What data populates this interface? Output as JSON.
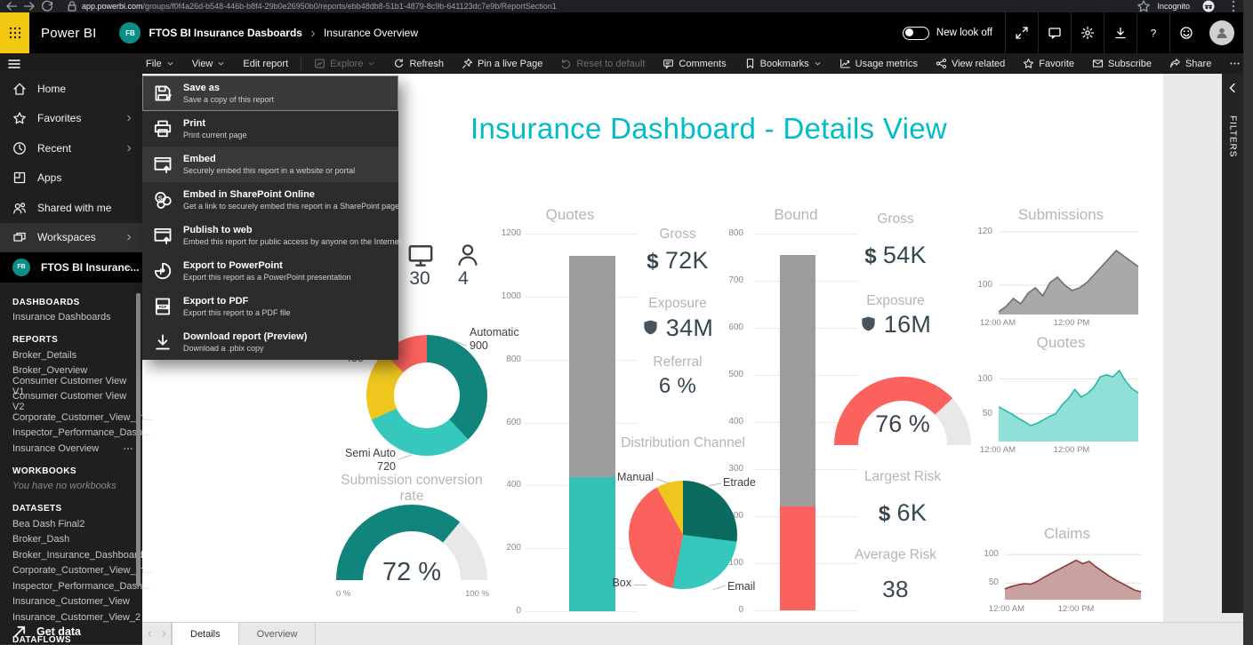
{
  "browser": {
    "url_host": "app.powerbi.com",
    "url_path": "/groups/f0f4a26d-b548-446b-b8f4-29b0e26950b0/reports/ebb48db8-51b1-4879-8c9b-641123dc7e9b/ReportSection1",
    "incognito_label": "Incognito"
  },
  "header": {
    "app_name": "Power BI",
    "workspace_badge": "FB",
    "breadcrumb_workspace": "FTOS BI Insurance Dasboards",
    "breadcrumb_report": "Insurance Overview",
    "new_look_label": "New look off",
    "right_icons": [
      "fullscreen-icon",
      "chat-icon",
      "gear-icon",
      "download-icon",
      "help-icon",
      "smiley-icon"
    ]
  },
  "menubar": {
    "left": [
      {
        "label": "File",
        "chevron": true,
        "name": "file"
      },
      {
        "label": "View",
        "chevron": true,
        "name": "view"
      },
      {
        "label": "Edit report",
        "name": "edit-report",
        "sep_after": true
      },
      {
        "label": "Explore",
        "icon": "explore-icon",
        "chevron": true,
        "disabled": true,
        "name": "explore"
      },
      {
        "label": "Refresh",
        "icon": "refresh-icon",
        "name": "refresh"
      },
      {
        "label": "Pin a live Page",
        "icon": "pin-icon",
        "name": "pin-live-page"
      }
    ],
    "right": [
      {
        "label": "Reset to default",
        "icon": "undo-icon",
        "disabled": true,
        "name": "reset-to-default"
      },
      {
        "label": "Comments",
        "icon": "comment-icon",
        "name": "comments"
      },
      {
        "label": "Bookmarks",
        "icon": "bookmark-icon",
        "chevron": true,
        "name": "bookmarks"
      },
      {
        "label": "Usage metrics",
        "icon": "metrics-icon",
        "name": "usage-metrics"
      },
      {
        "label": "View related",
        "icon": "related-icon",
        "name": "view-related"
      },
      {
        "label": "Favorite",
        "icon": "favorite-icon",
        "name": "favorite"
      },
      {
        "label": "Subscribe",
        "icon": "envelope-icon",
        "name": "subscribe"
      },
      {
        "label": "Share",
        "icon": "share-icon",
        "name": "share"
      },
      {
        "label": "",
        "icon": "more-icon",
        "name": "more-options"
      }
    ]
  },
  "file_menu": [
    {
      "title": "Save as",
      "desc": "Save a copy of this report",
      "icon": "save-icon",
      "state": "focused"
    },
    {
      "title": "Print",
      "desc": "Print current page",
      "icon": "print-icon"
    },
    {
      "title": "Embed",
      "desc": "Securely embed this report in a website or portal",
      "icon": "embed-icon",
      "state": "hover"
    },
    {
      "title": "Embed in SharePoint Online",
      "desc": "Get a link to securely embed this report in a SharePoint page",
      "icon": "sharepoint-icon"
    },
    {
      "title": "Publish to web",
      "desc": "Embed this report for public access by anyone on the Internet",
      "icon": "publish-web-icon"
    },
    {
      "title": "Export to PowerPoint",
      "desc": "Export this report as a PowerPoint presentation",
      "icon": "powerpoint-icon"
    },
    {
      "title": "Export to PDF",
      "desc": "Export this report to a PDF file",
      "icon": "pdf-icon"
    },
    {
      "title": "Download report (Preview)",
      "desc": "Download a .pbix copy",
      "icon": "download-icon"
    }
  ],
  "sidebar": {
    "nav": [
      {
        "label": "Home",
        "icon": "home-icon"
      },
      {
        "label": "Favorites",
        "icon": "star-icon",
        "chevron": "right"
      },
      {
        "label": "Recent",
        "icon": "clock-icon",
        "chevron": "right"
      },
      {
        "label": "Apps",
        "icon": "apps-icon"
      },
      {
        "label": "Shared with me",
        "icon": "people-icon"
      },
      {
        "label": "Workspaces",
        "icon": "workspaces-icon",
        "chevron": "right",
        "highlight": true
      },
      {
        "label": "FTOS BI Insuranc...",
        "badge": "FB",
        "chevron": "up",
        "active": true
      }
    ],
    "sections": [
      {
        "heading": "DASHBOARDS",
        "items": [
          {
            "label": "Insurance Dashboards"
          }
        ]
      },
      {
        "heading": "REPORTS",
        "items": [
          {
            "label": "Broker_Details"
          },
          {
            "label": "Broker_Overview"
          },
          {
            "label": "Consumer Customer View V1"
          },
          {
            "label": "Consumer Customer View V2"
          },
          {
            "label": "Corporate_Customer_View_In..."
          },
          {
            "label": "Inspector_Performance_Dash..."
          },
          {
            "label": "Insurance Overview",
            "more": true
          }
        ]
      },
      {
        "heading": "WORKBOOKS",
        "empty": "You have no workbooks",
        "items": []
      },
      {
        "heading": "DATASETS",
        "items": [
          {
            "label": "Bea Dash Final2"
          },
          {
            "label": "Broker_Dash"
          },
          {
            "label": "Broker_Insurance_Dashboard"
          },
          {
            "label": "Corporate_Customer_View_In..."
          },
          {
            "label": "Inspector_Performance_Dash..."
          },
          {
            "label": "Insurance_Customer_View"
          },
          {
            "label": "Insurance_Customer_View_2"
          }
        ]
      },
      {
        "heading": "DATAFLOWS",
        "items": []
      }
    ],
    "get_data_label": "Get data"
  },
  "report": {
    "title": "Insurance Dashboard - Details View",
    "accent_color": "#00BCC9",
    "filters_label": "FILTERS",
    "tabs": [
      {
        "label": "Details",
        "active": true
      },
      {
        "label": "Overview",
        "active": false
      }
    ]
  },
  "chart_data": {
    "counts": {
      "type": "kpi",
      "monitor_value": "30",
      "person_value": "4"
    },
    "quotes_column": {
      "type": "bar",
      "title": "Quotes",
      "ylim": [
        0,
        1200
      ],
      "yticks": [
        0,
        200,
        400,
        600,
        800,
        1000,
        1200
      ],
      "stack": [
        {
          "name": "segment-bottom",
          "value": 425,
          "color": "#35C1B6"
        },
        {
          "name": "segment-top",
          "value": 705,
          "color": "#9D9D9D"
        }
      ]
    },
    "bound_column": {
      "type": "bar",
      "title": "Bound",
      "ylim": [
        0,
        800
      ],
      "yticks": [
        0,
        100,
        200,
        300,
        400,
        500,
        600,
        700,
        800
      ],
      "stack": [
        {
          "name": "segment-bottom",
          "value": 220,
          "color": "#FB625D"
        },
        {
          "name": "segment-top",
          "value": 535,
          "color": "#9D9D9D"
        }
      ]
    },
    "submission_donut": {
      "type": "donut",
      "slices": [
        {
          "label": "Automatic",
          "value": 900,
          "color": "#11847B"
        },
        {
          "label": "Semi Auto",
          "value": 720,
          "color": "#36C7BD"
        },
        {
          "label": "450",
          "value": 450,
          "color": "#EEC61E"
        },
        {
          "label": "",
          "value": 300,
          "color": "#FB625D"
        }
      ],
      "callouts": {
        "automatic_label": "Automatic",
        "automatic_value": "900",
        "semi_label": "Semi Auto",
        "semi_value": "720",
        "partial_value": "450"
      }
    },
    "conversion_gauge": {
      "type": "gauge",
      "title": "Submission conversion rate",
      "value_pct": 72,
      "display": "72 %",
      "min_label": "0 %",
      "max_label": "100 %",
      "color": "#11847B",
      "track_color": "#E8E8E8"
    },
    "quotes_kpis": {
      "type": "kpi",
      "currency": "$",
      "gross_label": "Gross",
      "gross_value": "72K",
      "exposure_label": "Exposure",
      "exposure_value": "34M",
      "referral_label": "Referral",
      "referral_value": "6 %"
    },
    "distribution_pie": {
      "type": "pie",
      "title": "Distribution Channel",
      "slices": [
        {
          "label": "Etrade",
          "value": 27,
          "color": "#0C6B5F"
        },
        {
          "label": "Email",
          "value": 26,
          "color": "#36C7BD"
        },
        {
          "label": "Box",
          "value": 39,
          "color": "#FB625D"
        },
        {
          "label": "Manual",
          "value": 8,
          "color": "#EEC61E"
        }
      ]
    },
    "bound_kpis": {
      "type": "kpi",
      "currency": "$",
      "gross_label": "Gross",
      "gross_value": "54K",
      "exposure_label": "Exposure",
      "exposure_value": "16M"
    },
    "bound_gauge": {
      "type": "gauge",
      "value_pct": 76,
      "display": "76 %",
      "color": "#FB625D",
      "track_color": "#E8E8E8"
    },
    "risk_kpis": {
      "type": "kpi",
      "currency": "$",
      "largest_label": "Largest Risk",
      "largest_value": "6K",
      "average_label": "Average Risk",
      "average_value": "38"
    },
    "submissions_area": {
      "type": "area",
      "title": "Submissions",
      "line_color": "#6F6F6F",
      "fill_color": "#A9A9A9",
      "ylim": [
        89,
        121
      ],
      "yticks": [
        100,
        120
      ],
      "x_labels": [
        "12:00 AM",
        "12:00 PM"
      ],
      "values": [
        90,
        92,
        95,
        93,
        97,
        99,
        96,
        101,
        103,
        100,
        98,
        99,
        101,
        104,
        107,
        110,
        113,
        111,
        109,
        107
      ]
    },
    "quotes_area": {
      "type": "area",
      "title": "Quotes",
      "line_color": "#26B8AB",
      "fill_color": "#90E0D7",
      "ylim": [
        10,
        134
      ],
      "yticks": [
        50,
        100
      ],
      "x_labels": [
        "12:00 AM",
        "12:00 PM"
      ],
      "values": [
        60,
        55,
        50,
        44,
        39,
        33,
        36,
        41,
        46,
        50,
        63,
        72,
        85,
        74,
        79,
        88,
        103,
        106,
        103,
        112,
        97,
        86,
        80
      ]
    },
    "claims_area": {
      "type": "area",
      "title": "Claims",
      "line_color": "#8C3A37",
      "fill_color": "#C9A19F",
      "ylim": [
        21,
        122
      ],
      "yticks": [
        50,
        100
      ],
      "x_labels": [
        "12:00 AM",
        "12:00 PM"
      ],
      "values": [
        40,
        44,
        47,
        49,
        48,
        53,
        60,
        66,
        72,
        78,
        84,
        90,
        84,
        88,
        79,
        71,
        63,
        56,
        50,
        44,
        38,
        35
      ]
    }
  }
}
